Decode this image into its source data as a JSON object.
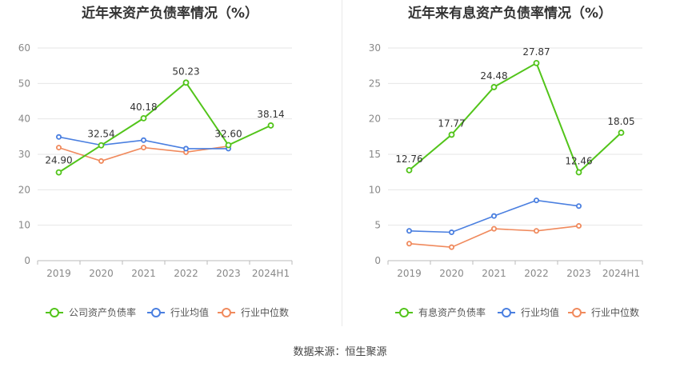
{
  "footer": {
    "source": "数据来源：恒生聚源"
  },
  "charts": [
    {
      "title": "近年来资产负债率情况（%）"
    },
    {
      "title": "近年来有息资产负债率情况（%）"
    }
  ],
  "chart_data": [
    {
      "type": "line",
      "title": "近年来资产负债率情况（%）",
      "categories": [
        "2019",
        "2020",
        "2021",
        "2022",
        "2023",
        "2024H1"
      ],
      "ylim": [
        0,
        60
      ],
      "yticks": [
        0,
        10,
        20,
        30,
        40,
        50,
        60
      ],
      "grid": true,
      "legend_position": "bottom",
      "series": [
        {
          "name": "公司资产负债率",
          "color": "#52c41a",
          "values": [
            24.9,
            32.54,
            40.18,
            50.23,
            32.6,
            38.14
          ],
          "labels": [
            "24.90",
            "32.54",
            "40.18",
            "50.23",
            "32.60",
            "38.14"
          ],
          "label_placement": [
            "below",
            "above",
            "above",
            "above",
            "above",
            "above"
          ]
        },
        {
          "name": "行业均值",
          "color": "#4a7fe0",
          "values": [
            34.9,
            32.6,
            34.0,
            31.6,
            31.6,
            null
          ]
        },
        {
          "name": "行业中位数",
          "color": "#f08a5d",
          "values": [
            31.9,
            28.1,
            31.9,
            30.6,
            32.3,
            null
          ]
        }
      ]
    },
    {
      "type": "line",
      "title": "近年来有息资产负债率情况（%）",
      "categories": [
        "2019",
        "2020",
        "2021",
        "2022",
        "2023",
        "2024H1"
      ],
      "ylim": [
        0,
        30
      ],
      "yticks": [
        0,
        5,
        10,
        15,
        20,
        25,
        30
      ],
      "grid": true,
      "legend_position": "bottom",
      "series": [
        {
          "name": "有息资产负债率",
          "color": "#52c41a",
          "values": [
            12.76,
            17.77,
            24.48,
            27.87,
            12.46,
            18.05
          ],
          "labels": [
            "12.76",
            "17.77",
            "24.48",
            "27.87",
            "12.46",
            "18.05"
          ],
          "label_placement": [
            "above",
            "above",
            "above",
            "above",
            "above",
            "above"
          ]
        },
        {
          "name": "行业均值",
          "color": "#4a7fe0",
          "values": [
            4.2,
            4.0,
            6.3,
            8.5,
            7.7,
            null
          ]
        },
        {
          "name": "行业中位数",
          "color": "#f08a5d",
          "values": [
            2.4,
            1.9,
            4.5,
            4.2,
            4.9,
            null
          ]
        }
      ]
    }
  ]
}
